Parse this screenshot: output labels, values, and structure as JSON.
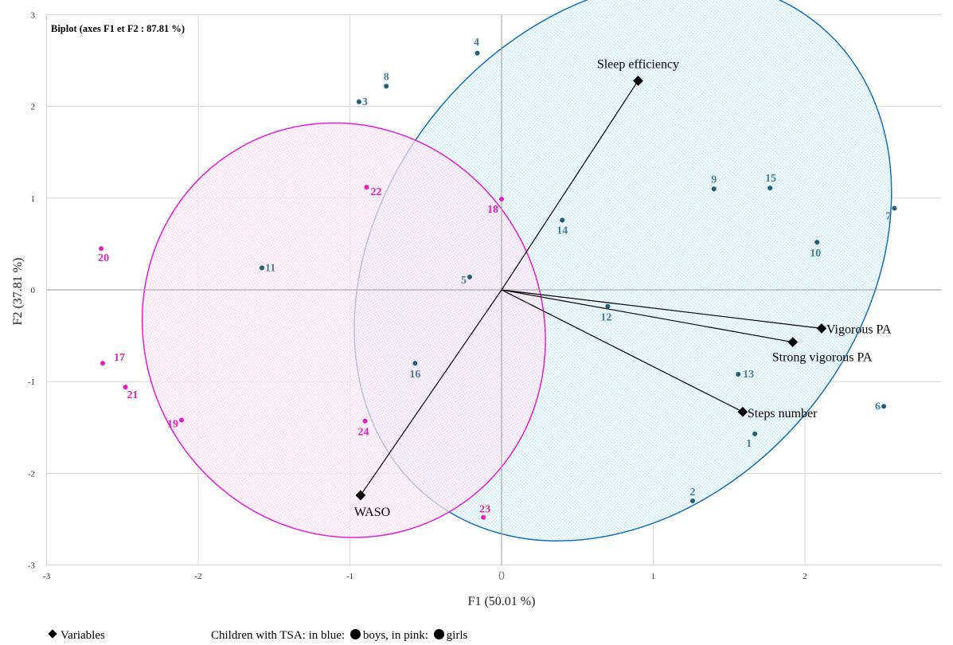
{
  "chart_data": {
    "type": "scatter",
    "title": "Biplot (axes F1 et F2 : 87.81 %)",
    "xlabel": "F1 (50.01 %)",
    "ylabel": "F2 (37.81 %)",
    "xlim": [
      -3,
      3
    ],
    "ylim": [
      -3,
      3
    ],
    "grid": true,
    "x_ticks": [
      -3,
      -2,
      -1,
      0,
      1,
      2
    ],
    "y_ticks": [
      -3,
      -2,
      -1,
      0,
      1,
      2,
      3
    ],
    "colors": {
      "boys_point": "#1f5f7a",
      "boys_label": "#4a7f9a",
      "girls": "#e020c0",
      "boys_ellipse": "#1570b5",
      "girls_ellipse": "#e61ed6"
    },
    "series": [
      {
        "name": "boys",
        "points": [
          {
            "label": "1",
            "x": 1.67,
            "y": -1.57
          },
          {
            "label": "2",
            "x": 1.26,
            "y": -2.3
          },
          {
            "label": "3",
            "x": -0.94,
            "y": 2.05
          },
          {
            "label": "4",
            "x": -0.16,
            "y": 2.58
          },
          {
            "label": "5",
            "x": -0.21,
            "y": 0.14
          },
          {
            "label": "6",
            "x": 2.52,
            "y": -1.27
          },
          {
            "label": "7",
            "x": 2.59,
            "y": 0.89
          },
          {
            "label": "8",
            "x": -0.76,
            "y": 2.22
          },
          {
            "label": "9",
            "x": 1.4,
            "y": 1.1
          },
          {
            "label": "10",
            "x": 2.08,
            "y": 0.52
          },
          {
            "label": "11",
            "x": -1.58,
            "y": 0.24
          },
          {
            "label": "12",
            "x": 0.7,
            "y": -0.18
          },
          {
            "label": "13",
            "x": 1.56,
            "y": -0.92
          },
          {
            "label": "14",
            "x": 0.4,
            "y": 0.76
          },
          {
            "label": "15",
            "x": 1.77,
            "y": 1.11
          },
          {
            "label": "16",
            "x": -0.57,
            "y": -0.8
          }
        ]
      },
      {
        "name": "girls",
        "points": [
          {
            "label": "17",
            "x": -2.63,
            "y": -0.8
          },
          {
            "label": "18",
            "x": 0.0,
            "y": 0.99
          },
          {
            "label": "19",
            "x": -2.11,
            "y": -1.42
          },
          {
            "label": "20",
            "x": -2.64,
            "y": 0.45
          },
          {
            "label": "21",
            "x": -2.48,
            "y": -1.06
          },
          {
            "label": "22",
            "x": -0.89,
            "y": 1.12
          },
          {
            "label": "23",
            "x": -0.12,
            "y": -2.48
          },
          {
            "label": "24",
            "x": -0.9,
            "y": -1.43
          }
        ]
      }
    ],
    "variables": [
      {
        "name": "Sleep efficiency",
        "x": 0.9,
        "y": 2.28
      },
      {
        "name": "Vigorous PA",
        "x": 2.11,
        "y": -0.42
      },
      {
        "name": "Strong vigorous PA",
        "x": 1.92,
        "y": -0.57
      },
      {
        "name": "Steps number",
        "x": 1.59,
        "y": -1.33
      },
      {
        "name": "WASO",
        "x": -0.93,
        "y": -2.24
      }
    ],
    "ellipses": [
      {
        "group": "boys",
        "cx": 0.8,
        "cy": 0.32,
        "rx": 2.02,
        "ry": 2.6,
        "rotation_deg": 50
      },
      {
        "group": "girls",
        "cx": -1.04,
        "cy": -0.44,
        "rx": 1.31,
        "ry": 2.29,
        "rotation_deg": 30
      }
    ]
  },
  "legend": {
    "variables_label": "Variables",
    "children_prefix": "Children with TSA: in blue:",
    "boys_label": "boys, in pink:",
    "girls_label": "girls"
  }
}
